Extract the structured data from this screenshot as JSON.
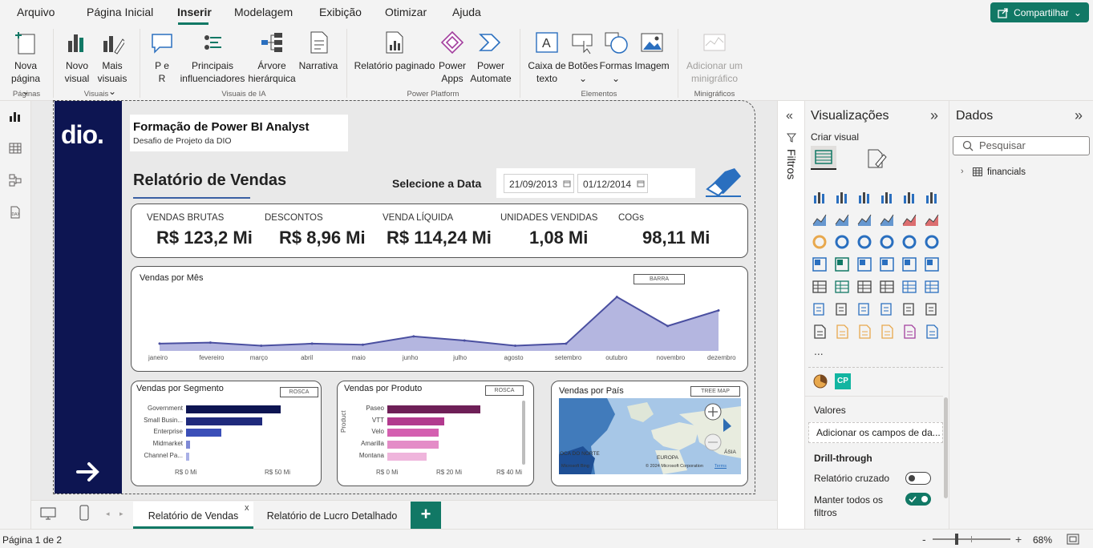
{
  "menu": {
    "items": [
      "Arquivo",
      "Página Inicial",
      "Inserir",
      "Modelagem",
      "Exibição",
      "Otimizar",
      "Ajuda"
    ],
    "active": "Inserir",
    "share_label": "Compartilhar"
  },
  "ribbon": {
    "nova_pagina": [
      "Nova",
      "página ⌄"
    ],
    "novo_visual": [
      "Novo",
      "visual"
    ],
    "mais_visuais": [
      "Mais",
      "visuais ⌄"
    ],
    "pe_r": [
      "P e",
      "R"
    ],
    "principais": [
      "Principais",
      "influenciadores"
    ],
    "arvore": [
      "Árvore",
      "hierárquica"
    ],
    "narrativa": "Narrativa",
    "relatorio_paginado": "Relatório paginado",
    "power_apps": [
      "Power",
      "Apps"
    ],
    "power_automate": [
      "Power",
      "Automate"
    ],
    "caixa_texto": [
      "Caixa de",
      "texto"
    ],
    "botoes": [
      "Botões",
      "⌄"
    ],
    "formas": [
      "Formas",
      "⌄"
    ],
    "imagem": "Imagem",
    "adicionar_mini": [
      "Adicionar um",
      "minigráfico"
    ],
    "groups": {
      "paginas": "Páginas",
      "visuais": "Visuais",
      "visuais_ia": "Visuais de IA",
      "power_platform": "Power Platform",
      "elementos": "Elementos",
      "minigraficos": "Minigráficos"
    }
  },
  "report": {
    "logo": "dio.",
    "header_title": "Formação de Power BI Analyst",
    "header_subtitle": "Desafio de Projeto da DIO",
    "title": "Relatório de Vendas",
    "date_label": "Selecione a Data",
    "date_start": "21/09/2013",
    "date_end": "01/12/2014",
    "kpis": [
      {
        "label": "VENDAS BRUTAS",
        "value": "R$ 123,2 Mi"
      },
      {
        "label": "DESCONTOS",
        "value": "R$ 8,96 Mi"
      },
      {
        "label": "VENDA LÍQUIDA",
        "value": "R$ 114,24 Mi"
      },
      {
        "label": "UNIDADES VENDIDAS",
        "value": "1,08 Mi"
      },
      {
        "label": "COGs",
        "value": "98,11 Mi"
      }
    ],
    "line_chart": {
      "title": "Vendas por Mês",
      "tag": "BARRA"
    },
    "segment_chart": {
      "title": "Vendas por Segmento",
      "tag": "ROSCA"
    },
    "product_chart": {
      "title": "Vendas por Produto",
      "tag": "ROSCA",
      "axis_title": "Product"
    },
    "country_map": {
      "title": "Vendas por País",
      "tag": "TREE MAP",
      "labels": [
        "OCA DO NORTE",
        "EUROPA",
        "ÁSIA"
      ],
      "copyright": "© 2024 Microsoft Corporation",
      "terms": "Terms",
      "brand": "Microsoft Bing"
    }
  },
  "chart_data": [
    {
      "type": "area",
      "title": "Vendas por Mês",
      "categories": [
        "janeiro",
        "fevereiro",
        "março",
        "abril",
        "maio",
        "junho",
        "julho",
        "agosto",
        "setembro",
        "outubro",
        "novembro",
        "dezembro"
      ],
      "values": [
        7,
        8,
        5,
        7,
        6,
        14,
        10,
        5,
        7,
        52,
        24,
        39
      ],
      "color": "#4a4fa0"
    },
    {
      "type": "bar",
      "title": "Vendas por Segmento",
      "categories": [
        "Government",
        "Small Busin...",
        "Enterprise",
        "Midmarket",
        "Channel Pa..."
      ],
      "values": [
        52.5,
        42.6,
        19.6,
        2.4,
        1.8
      ],
      "x_ticks": [
        "R$ 0 Mi",
        "R$ 50 Mi"
      ],
      "xlim": [
        0,
        50
      ],
      "colors": [
        "#0d1552",
        "#1f2a7c",
        "#3b4fb8",
        "#7f8ad6",
        "#a9b0e6"
      ]
    },
    {
      "type": "bar",
      "title": "Vendas por Produto",
      "categories": [
        "Paseo",
        "VTT",
        "Velo",
        "Amarilla",
        "Montana"
      ],
      "values": [
        31,
        19,
        17,
        17,
        13
      ],
      "x_ticks": [
        "R$ 0 Mi",
        "R$ 20 Mi",
        "R$ 40 Mi"
      ],
      "xlim": [
        0,
        40
      ],
      "colors": [
        "#6e1f57",
        "#b23a8e",
        "#d45fb0",
        "#e48cc7",
        "#efb5dc"
      ]
    }
  ],
  "pages": {
    "tabs": [
      "Relatório de Vendas",
      "Relatório de Lucro Detalhado"
    ],
    "active": "Relatório de Vendas",
    "add": "+",
    "close": "x"
  },
  "status": {
    "page_info": "Página 1 de 2",
    "zoom": "68%",
    "minus": "-",
    "plus": "+"
  },
  "filters_pane": {
    "label": "Filtros"
  },
  "viz_pane": {
    "title": "Visualizações",
    "build": "Criar visual",
    "more": "...",
    "values_label": "Valores",
    "values_placeholder": "Adicionar os campos de da...",
    "drill_label": "Drill-through",
    "cross_report": "Relatório cruzado",
    "keep_filters": [
      "Manter todos os",
      "filtros"
    ]
  },
  "data_pane": {
    "title": "Dados",
    "search_placeholder": "Pesquisar",
    "table": "financials"
  },
  "colors": {
    "accent": "#117865",
    "sidebar": "#0d1552"
  }
}
